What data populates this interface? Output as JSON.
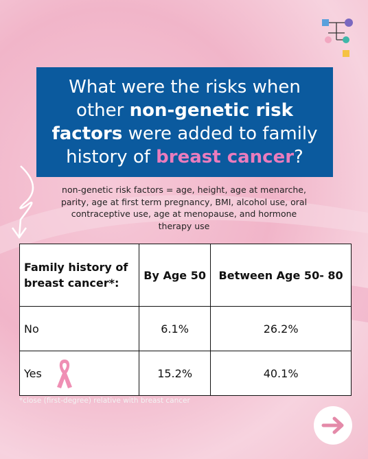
{
  "title": {
    "parts": [
      "What were the risks when other ",
      "non-genetic risk factors",
      " were added to family history of ",
      "breast cancer",
      "?"
    ]
  },
  "note": "non-genetic risk factors = age, height, age at menarche, parity, age at first term pregnancy, BMI, alcohol use, oral contraceptive use, age at menopause, and hormone therapy use",
  "table": {
    "header": [
      "Family history of breast cancer*:",
      "By Age 50",
      "Between Age 50- 80"
    ],
    "rows": [
      [
        "No",
        "6.1%",
        "26.2%"
      ],
      [
        "Yes",
        "15.2%",
        "40.1%"
      ]
    ]
  },
  "footnote": "*close (first-degree) relative with breast cancer"
}
